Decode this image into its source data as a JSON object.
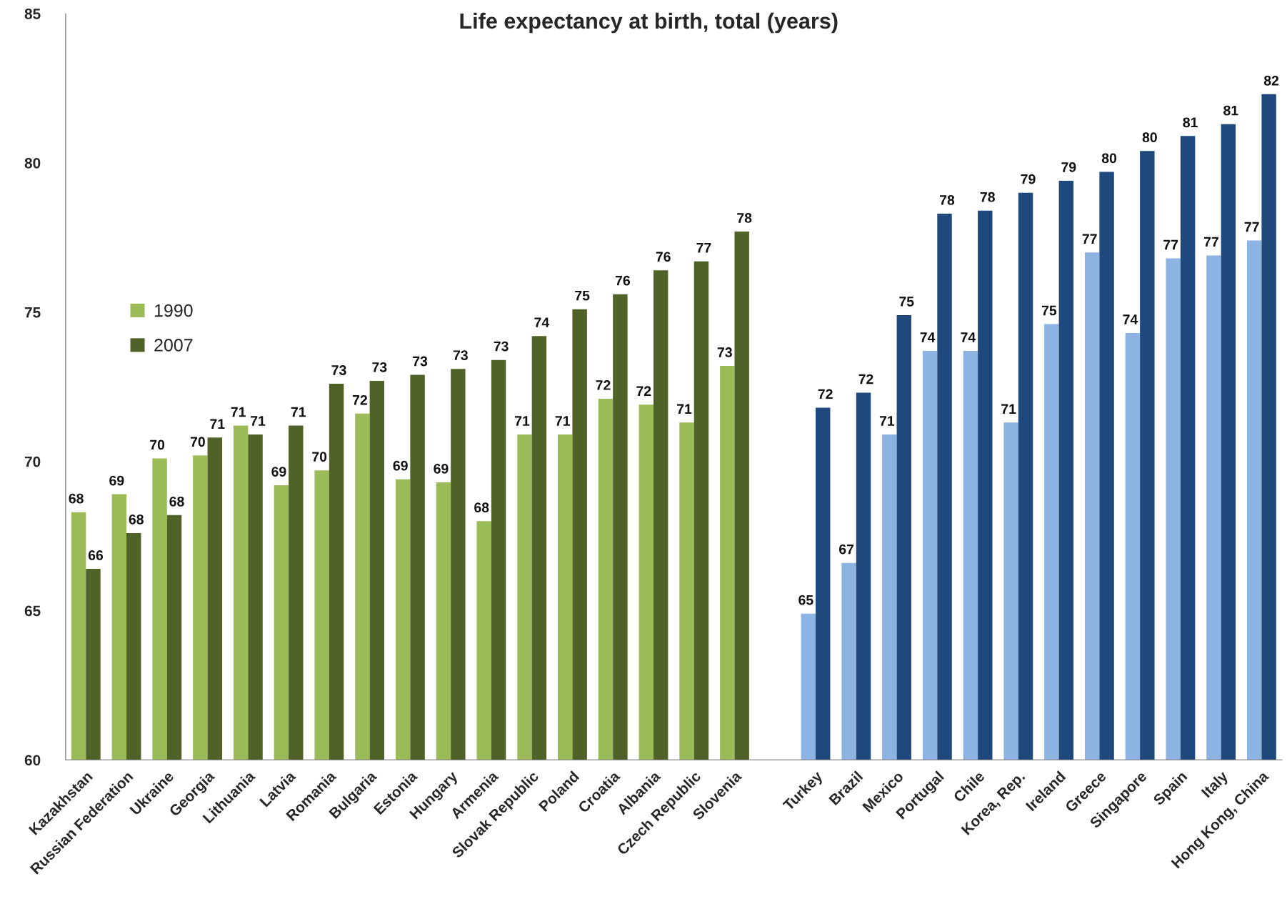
{
  "chart_data": {
    "type": "bar",
    "title": "Life expectancy at birth, total (years)",
    "categories": [
      "Kazakhstan",
      "Russian Federation",
      "Ukraine",
      "Georgia",
      "Lithuania",
      "Latvia",
      "Romania",
      "Bulgaria",
      "Estonia",
      "Hungary",
      "Armenia",
      "Slovak Republic",
      "Poland",
      "Croatia",
      "Albania",
      "Czech Republic",
      "Slovenia",
      null,
      "Turkey",
      "Brazil",
      "Mexico",
      "Portugal",
      "Chile",
      "Korea, Rep.",
      "Ireland",
      "Greece",
      "Singapore",
      "Spain",
      "Italy",
      "Hong Kong, China"
    ],
    "series": [
      {
        "name": "1990",
        "color": "#9bbb59",
        "values": [
          68.3,
          68.9,
          70.1,
          70.2,
          71.2,
          69.2,
          69.7,
          71.6,
          69.4,
          69.3,
          68.0,
          70.9,
          70.9,
          72.1,
          71.9,
          71.3,
          73.2,
          null,
          64.9,
          66.6,
          70.9,
          73.7,
          73.7,
          71.3,
          74.6,
          77.0,
          74.3,
          76.8,
          76.9,
          77.4
        ],
        "value_labels": [
          "68",
          "69",
          "70",
          "70",
          "71",
          "69",
          "70",
          "72",
          "69",
          "69",
          "68",
          "71",
          "71",
          "72",
          "72",
          "71",
          "73",
          null,
          "65",
          "67",
          "71",
          "74",
          "74",
          "71",
          "75",
          "77",
          "74",
          "77",
          "77",
          "77"
        ],
        "colors": [
          "#9bbb59",
          "#9bbb59",
          "#9bbb59",
          "#9bbb59",
          "#9bbb59",
          "#9bbb59",
          "#9bbb59",
          "#9bbb59",
          "#9bbb59",
          "#9bbb59",
          "#9bbb59",
          "#9bbb59",
          "#9bbb59",
          "#9bbb59",
          "#9bbb59",
          "#9bbb59",
          "#9bbb59",
          null,
          "#8db3e2",
          "#8db3e2",
          "#8db3e2",
          "#8db3e2",
          "#8db3e2",
          "#8db3e2",
          "#8db3e2",
          "#8db3e2",
          "#8db3e2",
          "#8db3e2",
          "#8db3e2",
          "#8db3e2"
        ]
      },
      {
        "name": "2007",
        "color": "#4f6228",
        "values": [
          66.4,
          67.6,
          68.2,
          70.8,
          70.9,
          71.2,
          72.6,
          72.7,
          72.9,
          73.1,
          73.4,
          74.2,
          75.1,
          75.6,
          76.4,
          76.7,
          77.7,
          null,
          71.8,
          72.3,
          74.9,
          78.3,
          78.4,
          79.0,
          79.4,
          79.7,
          80.4,
          80.9,
          81.3,
          82.3
        ],
        "value_labels": [
          "66",
          "68",
          "68",
          "71",
          "71",
          "71",
          "73",
          "73",
          "73",
          "73",
          "73",
          "74",
          "75",
          "76",
          "76",
          "77",
          "78",
          null,
          "72",
          "72",
          "75",
          "78",
          "78",
          "79",
          "79",
          "80",
          "80",
          "81",
          "81",
          "82"
        ],
        "colors": [
          "#4f6228",
          "#4f6228",
          "#4f6228",
          "#4f6228",
          "#4f6228",
          "#4f6228",
          "#4f6228",
          "#4f6228",
          "#4f6228",
          "#4f6228",
          "#4f6228",
          "#4f6228",
          "#4f6228",
          "#4f6228",
          "#4f6228",
          "#4f6228",
          "#4f6228",
          null,
          "#1f497d",
          "#1f497d",
          "#1f497d",
          "#1f497d",
          "#1f497d",
          "#1f497d",
          "#1f497d",
          "#1f497d",
          "#1f497d",
          "#1f497d",
          "#1f497d",
          "#1f497d"
        ]
      }
    ],
    "ylim": [
      60,
      85
    ],
    "yticks": [
      60,
      65,
      70,
      75,
      80,
      85
    ],
    "legend": "left"
  }
}
